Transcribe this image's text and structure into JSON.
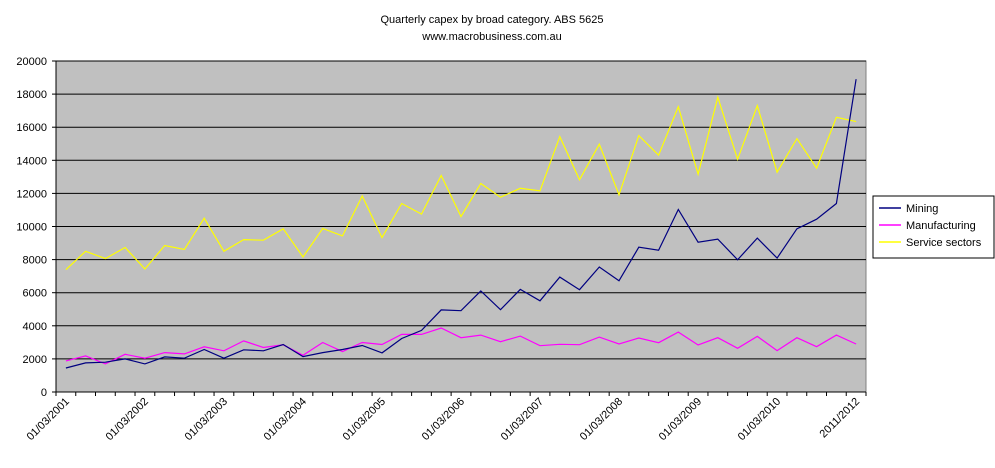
{
  "chart_data": {
    "type": "line",
    "title": "Quarterly capex by broad category. ABS 5625",
    "subtitle": "www.macrobusiness.com.au",
    "xlabel": "",
    "ylabel": "",
    "ylim": [
      0,
      20000
    ],
    "y_ticks": [
      0,
      2000,
      4000,
      6000,
      8000,
      10000,
      12000,
      14000,
      16000,
      18000,
      20000
    ],
    "n_points": 41,
    "x_tick_labels": [
      {
        "index": 0,
        "label": "01/03/2001"
      },
      {
        "index": 4,
        "label": "01/03/2002"
      },
      {
        "index": 8,
        "label": "01/03/2003"
      },
      {
        "index": 12,
        "label": "01/03/2004"
      },
      {
        "index": 16,
        "label": "01/03/2005"
      },
      {
        "index": 20,
        "label": "01/03/2006"
      },
      {
        "index": 24,
        "label": "01/03/2007"
      },
      {
        "index": 28,
        "label": "01/03/2008"
      },
      {
        "index": 32,
        "label": "01/03/2009"
      },
      {
        "index": 36,
        "label": "01/03/2010"
      },
      {
        "index": 40,
        "label": "2011/2012"
      }
    ],
    "grid": true,
    "legend_position": "right",
    "series": [
      {
        "name": "Mining",
        "color": "#000080",
        "values": [
          1450,
          1760,
          1800,
          2000,
          1700,
          2120,
          2040,
          2570,
          2040,
          2550,
          2490,
          2870,
          2140,
          2380,
          2570,
          2810,
          2360,
          3230,
          3720,
          4960,
          4910,
          6100,
          4970,
          6200,
          5510,
          6940,
          6180,
          7550,
          6720,
          8750,
          8570,
          11030,
          9050,
          9240,
          7990,
          9300,
          8090,
          9860,
          10440,
          11390,
          18900
        ]
      },
      {
        "name": "Manufacturing",
        "color": "#ff00ff",
        "values": [
          1880,
          2180,
          1700,
          2280,
          2040,
          2380,
          2300,
          2730,
          2490,
          3090,
          2690,
          2850,
          2220,
          2990,
          2440,
          2990,
          2870,
          3480,
          3480,
          3870,
          3280,
          3440,
          3040,
          3380,
          2800,
          2880,
          2860,
          3320,
          2900,
          3260,
          2980,
          3620,
          2840,
          3280,
          2640,
          3360,
          2500,
          3280,
          2740,
          3440,
          2900
        ]
      },
      {
        "name": "Service  sectors",
        "color": "#ffff00",
        "values": [
          7390,
          8500,
          8060,
          8730,
          7430,
          8850,
          8610,
          10500,
          8500,
          9210,
          9170,
          9860,
          8160,
          9880,
          9430,
          11840,
          9330,
          11390,
          10750,
          13080,
          10600,
          12600,
          11770,
          12310,
          12150,
          15430,
          12820,
          14970,
          11910,
          15490,
          14310,
          17240,
          13160,
          17810,
          14060,
          17300,
          13280,
          15310,
          13520,
          16600,
          16340
        ]
      }
    ]
  }
}
